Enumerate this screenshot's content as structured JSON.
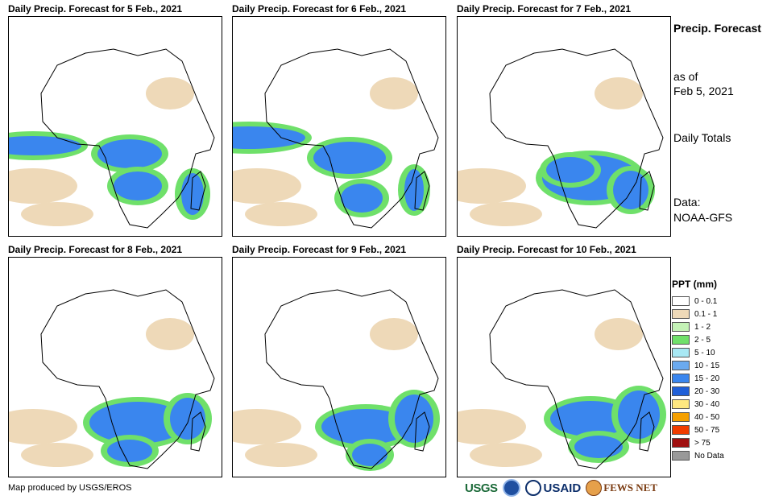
{
  "panels": [
    {
      "title": "Daily Precip. Forecast for 5 Feb., 2021"
    },
    {
      "title": "Daily Precip. Forecast for 6 Feb., 2021"
    },
    {
      "title": "Daily Precip. Forecast for 7 Feb., 2021"
    },
    {
      "title": "Daily Precip. Forecast for 8 Feb., 2021"
    },
    {
      "title": "Daily Precip. Forecast for 9 Feb., 2021"
    },
    {
      "title": "Daily Precip. Forecast for 10 Feb., 2021"
    }
  ],
  "info": {
    "title": "Precip. Forecast",
    "as_of_label": "as of",
    "as_of_date": "Feb 5, 2021",
    "daily_totals": "Daily Totals",
    "data_label": "Data:",
    "data_source": "NOAA-GFS"
  },
  "legend": {
    "title": "PPT (mm)",
    "items": [
      {
        "label": "0 - 0.1",
        "color": "#ffffff"
      },
      {
        "label": "0.1 - 1",
        "color": "#eed9b8"
      },
      {
        "label": "1 - 2",
        "color": "#c4f2b6"
      },
      {
        "label": "2 - 5",
        "color": "#6fe06a"
      },
      {
        "label": "5 - 10",
        "color": "#a8e8f4"
      },
      {
        "label": "10 - 15",
        "color": "#6aaaf0"
      },
      {
        "label": "15 - 20",
        "color": "#3a86ee"
      },
      {
        "label": "20 - 30",
        "color": "#1f5fd8"
      },
      {
        "label": "30 - 40",
        "color": "#ffe880"
      },
      {
        "label": "40 - 50",
        "color": "#f5a000"
      },
      {
        "label": "50 - 75",
        "color": "#f03c00"
      },
      {
        "label": "> 75",
        "color": "#a01010"
      },
      {
        "label": "No Data",
        "color": "#999999"
      }
    ]
  },
  "credit": "Map produced by USGS/EROS",
  "logos": {
    "usgs": "USGS",
    "usaid": "USAID",
    "fews": "FEWS NET"
  }
}
